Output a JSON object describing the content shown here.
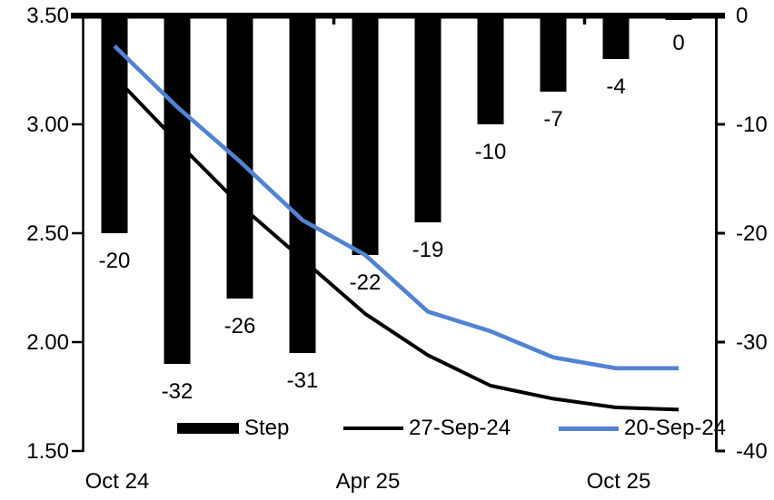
{
  "chart_data": {
    "type": "bar",
    "subtype": "combo-bar-line-dual-axis",
    "title": "",
    "num_categories": 10,
    "x_axis": {
      "tick_labels": [
        "Oct 24",
        "Apr 25",
        "Oct 25"
      ],
      "tick_label_category_index": [
        0,
        4,
        8
      ],
      "axis_position": "top",
      "labels_position": "bottom"
    },
    "left_axis": {
      "min": 1.5,
      "max": 3.5,
      "tick_labels": [
        "3.50",
        "3.00",
        "2.50",
        "2.00",
        "1.50"
      ]
    },
    "right_axis": {
      "min": -40,
      "max": 0,
      "tick_labels": [
        "0",
        "-10",
        "-20",
        "-30",
        "-40"
      ]
    },
    "series": [
      {
        "name": "Step",
        "type": "bar",
        "axis": "right",
        "color": "#000000",
        "values": [
          -20,
          -32,
          -26,
          -31,
          -22,
          -19,
          -10,
          -7,
          -4,
          0
        ],
        "data_labels": [
          "-20",
          "-32",
          "-26",
          "-31",
          "-22",
          "-19",
          "-10",
          "-7",
          "-4",
          "0"
        ]
      },
      {
        "name": "27-Sep-24",
        "type": "line",
        "axis": "left",
        "color": "#000000",
        "values": [
          3.22,
          2.92,
          2.63,
          2.38,
          2.13,
          1.94,
          1.8,
          1.74,
          1.7,
          1.69
        ]
      },
      {
        "name": "20-Sep-24",
        "type": "line",
        "axis": "left",
        "color": "#5283d3",
        "values": [
          3.36,
          3.08,
          2.83,
          2.56,
          2.4,
          2.14,
          2.05,
          1.93,
          1.88,
          1.88
        ]
      }
    ],
    "legend": {
      "position": "bottom",
      "entries": [
        "Step",
        "27-Sep-24",
        "20-Sep-24"
      ]
    },
    "grid": "off"
  }
}
